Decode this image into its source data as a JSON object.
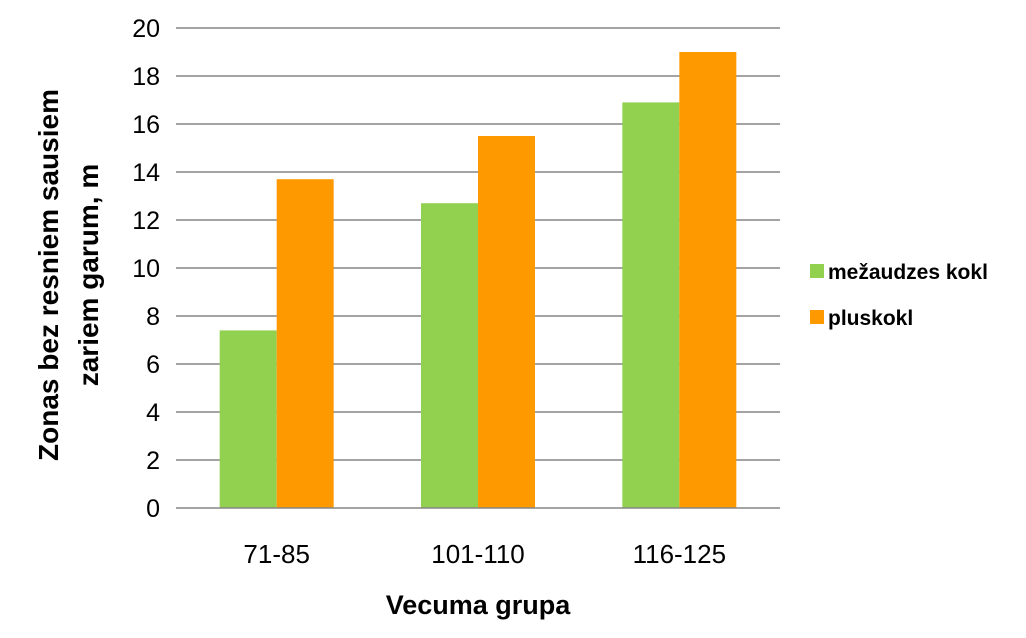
{
  "chart_data": {
    "type": "bar",
    "title": "",
    "xlabel": "Vecuma grupa",
    "ylabel_lines": [
      "Zonas bez resniem sausiem",
      "zariem garum, m"
    ],
    "categories": [
      "71-85",
      "101-110",
      "116-125"
    ],
    "series": [
      {
        "name": "mežaudzes kokl",
        "color": "#92D050",
        "values": [
          7.4,
          12.7,
          16.9
        ]
      },
      {
        "name": "pluskokl",
        "color": "#FF9900",
        "values": [
          13.7,
          15.5,
          19.0
        ]
      }
    ],
    "ylim": [
      0,
      20
    ],
    "yticks": [
      0,
      2,
      4,
      6,
      8,
      10,
      12,
      14,
      16,
      18,
      20
    ],
    "grid": true,
    "legend_position": "right"
  }
}
